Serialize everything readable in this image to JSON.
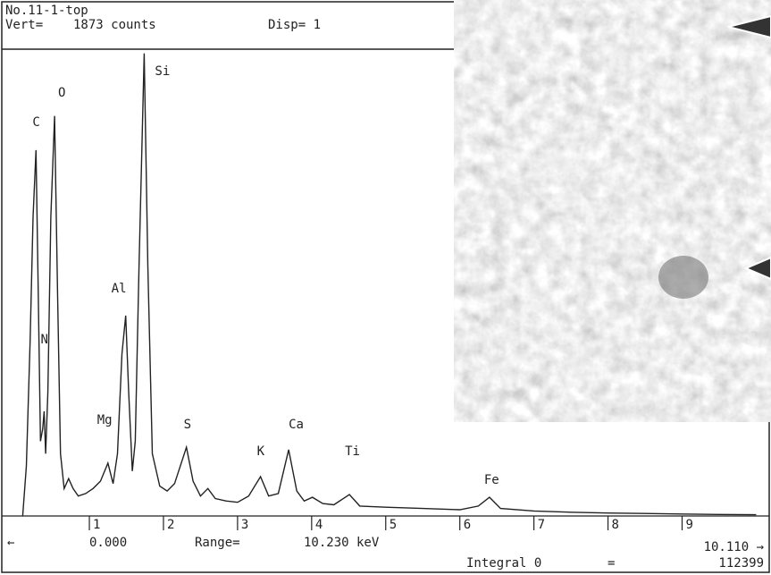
{
  "chart_data": {
    "type": "line",
    "header": {
      "sample": "No.11-1-top",
      "vert_label": "Vert=",
      "vert_value": "1873 counts",
      "disp": "Disp= 1"
    },
    "footer": {
      "left_arrow": "←",
      "start": "0.000",
      "range_label": "Range=",
      "range_value": "10.230 keV",
      "end": "10.110 →",
      "integral_label": "Integral 0",
      "equals": "=",
      "integral_value": "112399"
    },
    "xlim": [
      -0.17,
      10.2
    ],
    "ylim": [
      0,
      1873
    ],
    "xticks": [
      1,
      2,
      3,
      4,
      5,
      6,
      7,
      8,
      9
    ],
    "peaks": [
      {
        "label": "C",
        "x": 0.28
      },
      {
        "label": "N",
        "x": 0.39
      },
      {
        "label": "O",
        "x": 0.53
      },
      {
        "label": "Mg",
        "x": 1.25
      },
      {
        "label": "Al",
        "x": 1.49
      },
      {
        "label": "Si",
        "x": 1.74
      },
      {
        "label": "S",
        "x": 2.31
      },
      {
        "label": "K",
        "x": 3.31
      },
      {
        "label": "Ca",
        "x": 3.69
      },
      {
        "label": "Ti",
        "x": 4.51
      },
      {
        "label": "Fe",
        "x": 6.4
      }
    ],
    "x": [
      0.1,
      0.15,
      0.2,
      0.24,
      0.28,
      0.31,
      0.34,
      0.37,
      0.39,
      0.41,
      0.44,
      0.48,
      0.53,
      0.57,
      0.61,
      0.66,
      0.72,
      0.78,
      0.85,
      0.95,
      1.05,
      1.15,
      1.25,
      1.32,
      1.38,
      1.44,
      1.49,
      1.53,
      1.58,
      1.62,
      1.67,
      1.74,
      1.79,
      1.85,
      1.95,
      2.05,
      2.15,
      2.31,
      2.4,
      2.5,
      2.6,
      2.7,
      2.85,
      3.0,
      3.15,
      3.31,
      3.42,
      3.55,
      3.69,
      3.8,
      3.9,
      4.01,
      4.15,
      4.3,
      4.51,
      4.65,
      5.0,
      5.5,
      6.0,
      6.25,
      6.4,
      6.55,
      7.0,
      7.5,
      8.0,
      8.5,
      9.0,
      9.5,
      10.0
    ],
    "series": [
      {
        "color": "#222222",
        "values": [
          0,
          200,
          700,
          1200,
          1468,
          900,
          300,
          350,
          420,
          250,
          500,
          1200,
          1605,
          900,
          250,
          110,
          150,
          110,
          80,
          90,
          110,
          140,
          212,
          130,
          250,
          650,
          804,
          500,
          180,
          300,
          1000,
          1856,
          1000,
          250,
          120,
          100,
          130,
          276,
          140,
          80,
          110,
          70,
          60,
          55,
          80,
          158,
          80,
          90,
          266,
          100,
          60,
          75,
          50,
          45,
          86,
          40,
          35,
          30,
          25,
          40,
          75,
          30,
          20,
          15,
          12,
          10,
          8,
          6,
          5
        ]
      }
    ]
  }
}
